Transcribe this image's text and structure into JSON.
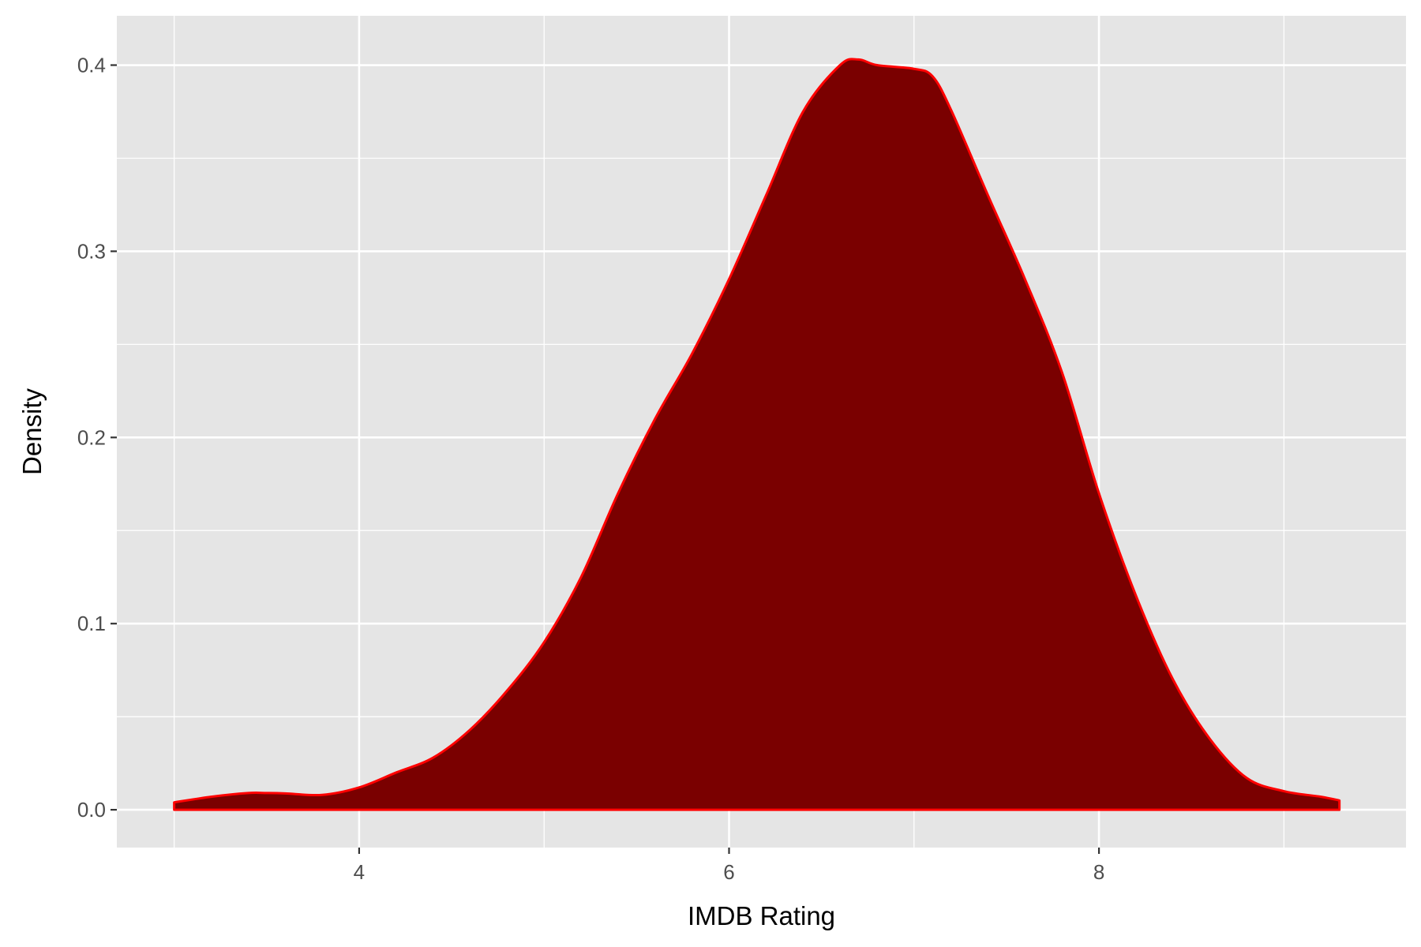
{
  "chart_data": {
    "type": "area",
    "title": "",
    "xlabel": "IMDB Rating",
    "ylabel": "Density",
    "xlim": [
      2.69,
      9.66
    ],
    "ylim": [
      -0.0203,
      0.4265
    ],
    "x_ticks": [
      4,
      6,
      8
    ],
    "x_tick_labels": [
      "4",
      "6",
      "8"
    ],
    "x_minor_ticks": [
      3,
      5,
      7,
      9
    ],
    "y_ticks": [
      0.0,
      0.1,
      0.2,
      0.3,
      0.4
    ],
    "y_tick_labels": [
      "0.0",
      "0.1",
      "0.2",
      "0.3",
      "0.4"
    ],
    "y_minor_ticks": [
      0.05,
      0.15,
      0.25,
      0.35
    ],
    "grid": true,
    "legend": "none",
    "colors": {
      "panel_background": "#e5e5e5",
      "grid": "#ffffff",
      "fill": "#7a0000",
      "outline": "#ff0000",
      "tick_label": "#4d4d4d",
      "axis_title": "#000000"
    },
    "series": [
      {
        "x": [
          3.0,
          3.2,
          3.4,
          3.5,
          3.6,
          3.8,
          4.0,
          4.2,
          4.4,
          4.6,
          4.8,
          5.0,
          5.2,
          5.4,
          5.6,
          5.8,
          6.0,
          6.2,
          6.4,
          6.6,
          6.7,
          6.8,
          7.0,
          7.1,
          7.2,
          7.4,
          7.6,
          7.8,
          8.0,
          8.2,
          8.4,
          8.6,
          8.8,
          9.0,
          9.2,
          9.3
        ],
        "y": [
          0.004,
          0.007,
          0.009,
          0.009,
          0.0088,
          0.008,
          0.012,
          0.02,
          0.028,
          0.043,
          0.064,
          0.09,
          0.125,
          0.17,
          0.21,
          0.245,
          0.285,
          0.33,
          0.375,
          0.4,
          0.403,
          0.4,
          0.398,
          0.394,
          0.376,
          0.33,
          0.285,
          0.235,
          0.17,
          0.115,
          0.07,
          0.038,
          0.017,
          0.01,
          0.007,
          0.005
        ]
      }
    ]
  }
}
